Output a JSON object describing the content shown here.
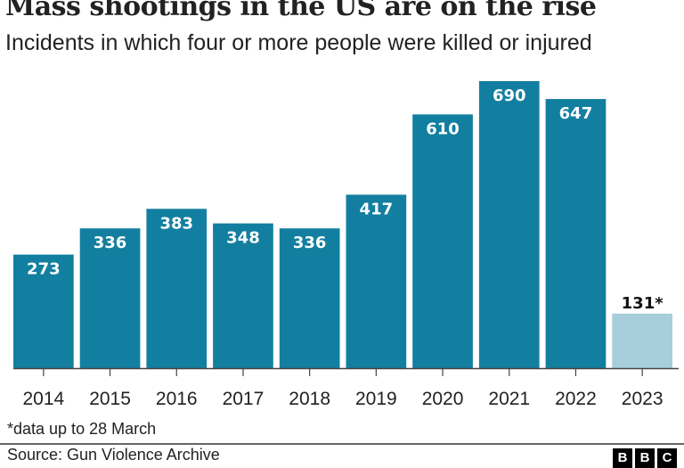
{
  "header": {
    "title": "Mass shootings in the US are on the rise",
    "subtitle": "Incidents in which four or more people were killed or injured"
  },
  "footer": {
    "note": "*data up to 28 March",
    "source": "Source: Gun Violence Archive",
    "logo_letters": [
      "B",
      "B",
      "C"
    ]
  },
  "chart_data": {
    "type": "bar",
    "title": "Mass shootings in the US are on the rise",
    "subtitle": "Incidents in which four or more people were killed or injured",
    "xlabel": "",
    "ylabel": "",
    "categories": [
      "2014",
      "2015",
      "2016",
      "2017",
      "2018",
      "2019",
      "2020",
      "2021",
      "2022",
      "2023"
    ],
    "values": [
      273,
      336,
      383,
      348,
      336,
      417,
      610,
      690,
      647,
      131
    ],
    "data_labels": [
      "273",
      "336",
      "383",
      "348",
      "336",
      "417",
      "610",
      "690",
      "647",
      "131*"
    ],
    "partial": [
      false,
      false,
      false,
      false,
      false,
      false,
      false,
      false,
      false,
      true
    ],
    "ylim": [
      0,
      690
    ],
    "grid": false,
    "colors": {
      "bar": "#137fa0",
      "partial_bar": "#a6cedb",
      "label_inside": "#ffffff",
      "label_outside": "#111111",
      "axis": "#444444"
    }
  }
}
